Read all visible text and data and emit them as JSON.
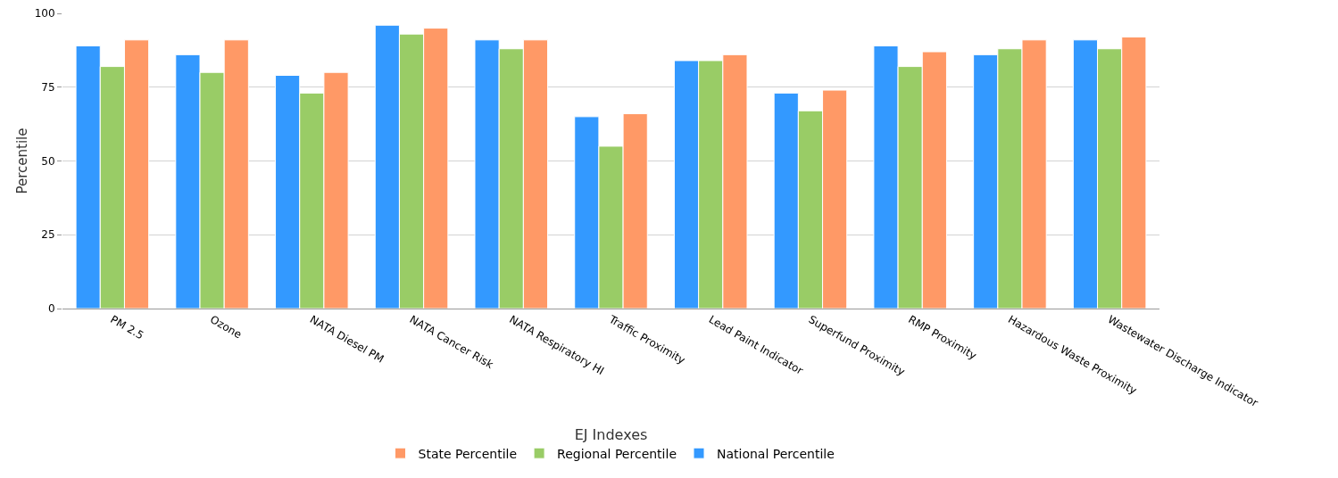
{
  "chart_data": {
    "type": "bar",
    "ylabel": "Percentile",
    "legend_title": "EJ Indexes",
    "categories": [
      "PM 2.5",
      "Ozone",
      "NATA Diesel PM",
      "NATA Cancer Risk",
      "NATA Respiratory HI",
      "Traffic Proximity",
      "Lead Paint Indicator",
      "Superfund Proximity",
      "RMP Proximity",
      "Hazardous Waste Proximity",
      "Wastewater Discharge Indicator"
    ],
    "series": [
      {
        "name": "National Percentile",
        "color": "#3399ff",
        "values": [
          89,
          86,
          79,
          96,
          91,
          65,
          84,
          73,
          89,
          86,
          91
        ]
      },
      {
        "name": "Regional Percentile",
        "color": "#99cc66",
        "values": [
          82,
          80,
          73,
          93,
          88,
          55,
          84,
          67,
          82,
          88,
          88
        ]
      },
      {
        "name": "State Percentile",
        "color": "#ff9966",
        "values": [
          91,
          91,
          80,
          95,
          91,
          66,
          86,
          74,
          87,
          91,
          92
        ]
      }
    ],
    "ylim": [
      0,
      100
    ],
    "yticks": [
      0,
      25,
      50,
      75,
      100
    ],
    "grid": "y",
    "legend": "bottom"
  }
}
